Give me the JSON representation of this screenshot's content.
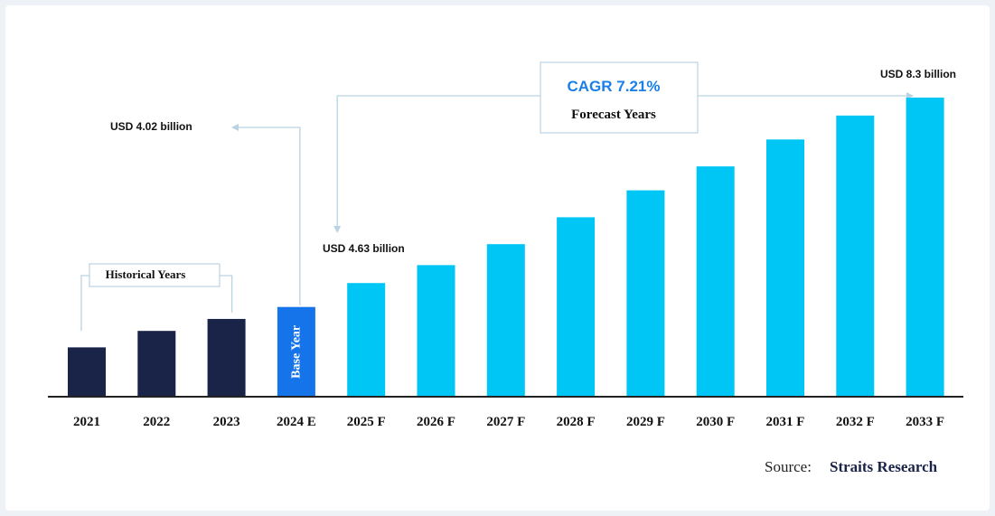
{
  "chart_data": {
    "type": "bar",
    "categories": [
      "2021",
      "2022",
      "2023",
      "2024 E",
      "2025 F",
      "2026 F",
      "2027 F",
      "2028 F",
      "2029 F",
      "2030 F",
      "2031 F",
      "2032 F",
      "2033 F"
    ],
    "values": [
      1.65,
      2.2,
      2.6,
      3.0,
      3.8,
      4.4,
      5.1,
      6.0,
      6.9,
      7.7,
      8.6,
      9.4,
      10.0
    ],
    "ylim": [
      0,
      10.0
    ],
    "grid": false,
    "bar_groups": {
      "historical": {
        "label": "Historical Years",
        "color": "#1a2348",
        "indices": [
          0,
          1,
          2
        ]
      },
      "base": {
        "label": "Base Year",
        "color": "#1574ea",
        "indices": [
          3
        ]
      },
      "forecast": {
        "label": "Forecast Years",
        "color": "#00c6f5",
        "indices": [
          4,
          5,
          6,
          7,
          8,
          9,
          10,
          11,
          12
        ]
      }
    },
    "annotations": {
      "base_value": {
        "text": "USD 4.02 billion",
        "bar_index": 3
      },
      "start_value": {
        "text": "USD 4.63 billion",
        "bar_index": 4
      },
      "end_value": {
        "text": "USD 8.3 billion",
        "bar_index": 12
      },
      "cagr": {
        "text": "CAGR 7.21%",
        "color": "#1a7fe8"
      }
    }
  },
  "source": {
    "label": "Source:",
    "name": "Straits Research"
  },
  "colors": {
    "connector": "#b9d3e2",
    "axis": "#222222",
    "text": "#111111"
  }
}
